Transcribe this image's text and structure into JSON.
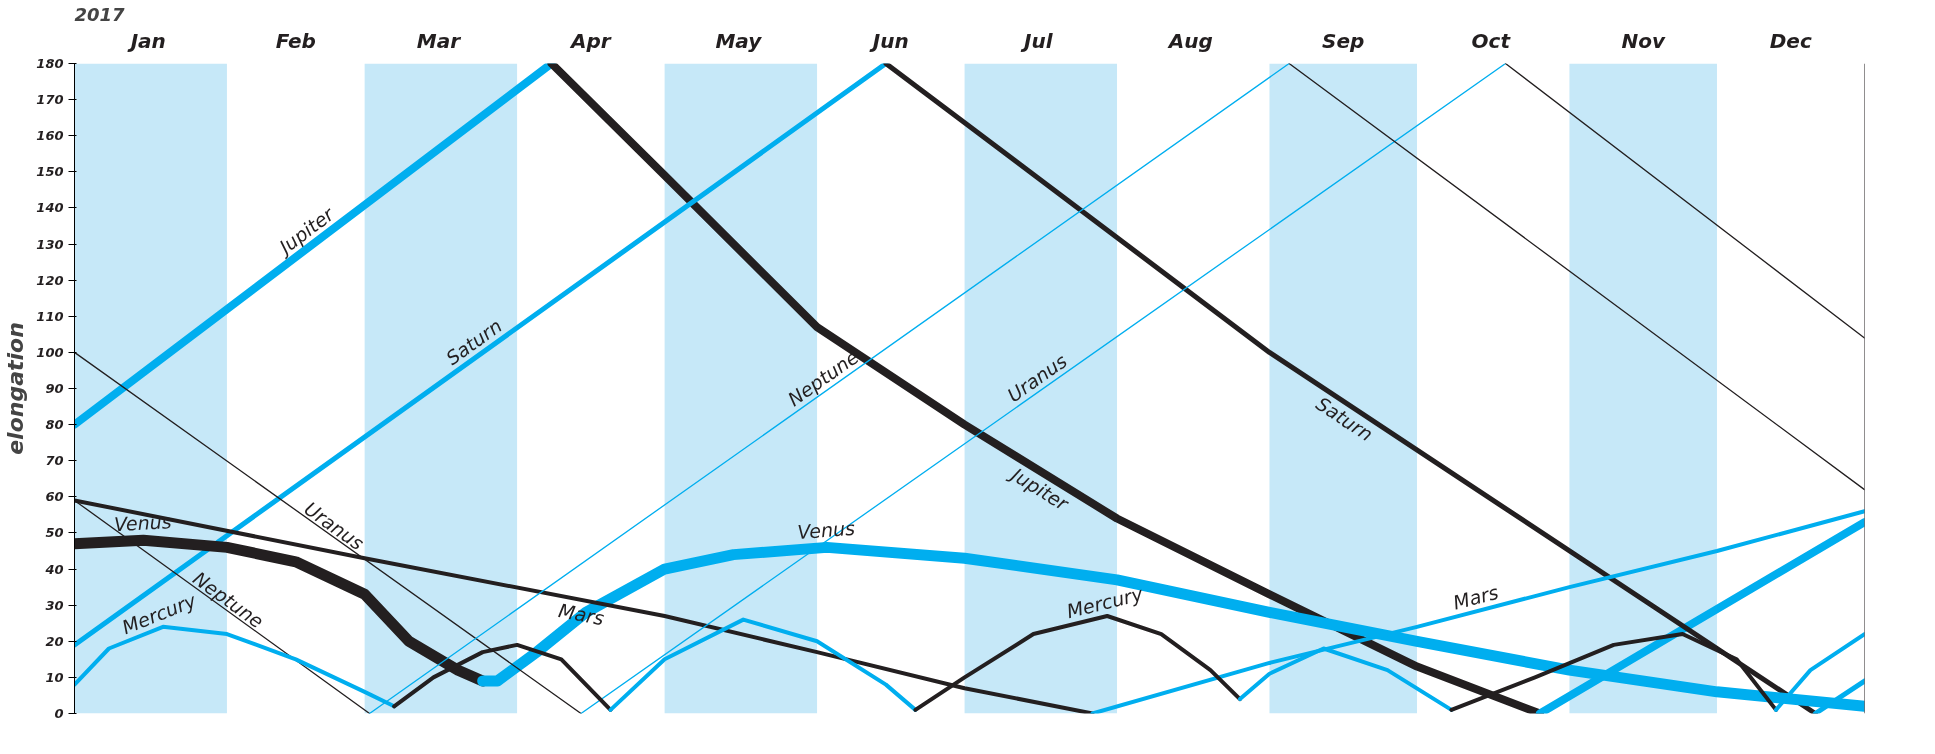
{
  "chart_data": {
    "type": "line",
    "title": "2017",
    "ylabel": "elongation",
    "xlim": [
      "2017-01-01",
      "2017-12-31"
    ],
    "xticks": [
      {
        "value": "2017-01-16",
        "label": "Jan"
      },
      {
        "value": "2017-02-15",
        "label": "Feb"
      },
      {
        "value": "2017-03-16",
        "label": "Mar"
      },
      {
        "value": "2017-04-16",
        "label": "Apr"
      },
      {
        "value": "2017-05-16",
        "label": "May"
      },
      {
        "value": "2017-06-16",
        "label": "Jun"
      },
      {
        "value": "2017-07-16",
        "label": "Jul"
      },
      {
        "value": "2017-08-16",
        "label": "Aug"
      },
      {
        "value": "2017-09-16",
        "label": "Sep"
      },
      {
        "value": "2017-10-16",
        "label": "Oct"
      },
      {
        "value": "2017-11-16",
        "label": "Nov"
      },
      {
        "value": "2017-12-16",
        "label": "Dec"
      }
    ],
    "ylim": [
      0,
      180
    ],
    "yticks": [
      0,
      10,
      20,
      30,
      40,
      50,
      60,
      70,
      80,
      90,
      100,
      110,
      120,
      130,
      140,
      150,
      160,
      170,
      180
    ],
    "grid": false,
    "line_style": "solid",
    "marker": "none",
    "bands": [
      {
        "axis": "x",
        "from": "2017-01-01",
        "to": "2017-02-01",
        "color": "#c6e8f8"
      },
      {
        "axis": "x",
        "from": "2017-03-01",
        "to": "2017-04-01",
        "color": "#c6e8f8"
      },
      {
        "axis": "x",
        "from": "2017-05-01",
        "to": "2017-06-01",
        "color": "#c6e8f8"
      },
      {
        "axis": "x",
        "from": "2017-07-01",
        "to": "2017-08-01",
        "color": "#c6e8f8"
      },
      {
        "axis": "x",
        "from": "2017-09-01",
        "to": "2017-10-01",
        "color": "#c6e8f8"
      },
      {
        "axis": "x",
        "from": "2017-11-01",
        "to": "2017-12-01",
        "color": "#c6e8f8"
      }
    ],
    "series": [
      {
        "name": "Jupiter",
        "color": "#00aeef",
        "x": [
          "2017-01-01",
          "2017-04-08"
        ],
        "values": [
          80,
          180
        ]
      },
      {
        "name": "Jupiter",
        "color": "#231f20",
        "x": [
          "2017-04-08",
          "2017-05-01",
          "2017-06-01",
          "2017-07-01",
          "2017-08-01",
          "2017-09-01",
          "2017-10-01",
          "2017-10-26"
        ],
        "values": [
          180,
          149,
          107,
          80,
          54,
          33,
          13,
          0
        ]
      },
      {
        "color": "#00aeef",
        "x": [
          "2017-10-26",
          "2017-12-31"
        ],
        "values": [
          0,
          53
        ]
      },
      {
        "name": "Saturn",
        "color": "#00aeef",
        "x": [
          "2017-01-01",
          "2017-06-15"
        ],
        "values": [
          19,
          180
        ]
      },
      {
        "name": "Saturn",
        "color": "#231f20",
        "x": [
          "2017-06-15",
          "2017-09-01",
          "2017-12-21"
        ],
        "values": [
          180,
          100,
          0
        ]
      },
      {
        "color": "#00aeef",
        "x": [
          "2017-12-21",
          "2017-12-31"
        ],
        "values": [
          0,
          9
        ]
      },
      {
        "name": "Venus",
        "color": "#231f20",
        "x": [
          "2017-01-01",
          "2017-01-15",
          "2017-02-01",
          "2017-02-15",
          "2017-03-01",
          "2017-03-10",
          "2017-03-20",
          "2017-03-25"
        ],
        "values": [
          47,
          48,
          46,
          42,
          33,
          20,
          12,
          9
        ]
      },
      {
        "name": "Venus",
        "color": "#00aeef",
        "x": [
          "2017-03-25",
          "2017-03-28",
          "2017-04-05",
          "2017-04-15",
          "2017-05-01",
          "2017-05-15",
          "2017-06-03",
          "2017-07-01",
          "2017-08-01",
          "2017-09-01",
          "2017-10-01",
          "2017-11-01",
          "2017-12-01",
          "2017-12-31"
        ],
        "values": [
          9,
          9,
          17,
          28,
          40,
          44,
          46,
          43,
          37,
          28,
          20,
          12,
          6,
          2
        ]
      },
      {
        "name": "Mars",
        "color": "#231f20",
        "x": [
          "2017-01-01",
          "2017-03-01",
          "2017-05-01",
          "2017-06-01",
          "2017-07-01",
          "2017-07-27"
        ],
        "values": [
          59,
          43,
          27,
          17,
          7,
          0
        ]
      },
      {
        "name": "Mars",
        "color": "#00aeef",
        "x": [
          "2017-07-27",
          "2017-09-01",
          "2017-10-01",
          "2017-11-01",
          "2017-12-01",
          "2017-12-31"
        ],
        "values": [
          0,
          14,
          24,
          35,
          45,
          56
        ]
      },
      {
        "name": "Uranus",
        "color": "#231f20",
        "x": [
          "2017-01-01",
          "2017-04-14"
        ],
        "values": [
          100,
          0
        ]
      },
      {
        "name": "Uranus",
        "color": "#00aeef",
        "x": [
          "2017-04-14",
          "2017-10-19"
        ],
        "values": [
          0,
          180
        ]
      },
      {
        "color": "#231f20",
        "x": [
          "2017-10-19",
          "2017-12-31"
        ],
        "values": [
          180,
          104
        ]
      },
      {
        "name": "Neptune",
        "color": "#231f20",
        "x": [
          "2017-01-01",
          "2017-03-02"
        ],
        "values": [
          59,
          0
        ]
      },
      {
        "name": "Neptune",
        "color": "#00aeef",
        "x": [
          "2017-03-02",
          "2017-09-05"
        ],
        "values": [
          0,
          180
        ]
      },
      {
        "color": "#231f20",
        "x": [
          "2017-09-05",
          "2017-12-31"
        ],
        "values": [
          180,
          62
        ]
      },
      {
        "name": "Mercury",
        "color": "#00aeef",
        "x": [
          "2017-01-01",
          "2017-01-08",
          "2017-01-19",
          "2017-02-01",
          "2017-02-15",
          "2017-03-01",
          "2017-03-07"
        ],
        "values": [
          8,
          18,
          24,
          22,
          15,
          6,
          2
        ]
      },
      {
        "color": "#231f20",
        "x": [
          "2017-03-07",
          "2017-03-15",
          "2017-03-25",
          "2017-04-01",
          "2017-04-10",
          "2017-04-20"
        ],
        "values": [
          2,
          10,
          17,
          19,
          15,
          1
        ]
      },
      {
        "color": "#00aeef",
        "x": [
          "2017-04-20",
          "2017-05-01",
          "2017-05-17",
          "2017-06-01",
          "2017-06-15",
          "2017-06-21"
        ],
        "values": [
          1,
          15,
          26,
          20,
          8,
          1
        ]
      },
      {
        "name": "Mercury",
        "color": "#231f20",
        "x": [
          "2017-06-21",
          "2017-07-01",
          "2017-07-15",
          "2017-07-30",
          "2017-08-10",
          "2017-08-20",
          "2017-08-26"
        ],
        "values": [
          1,
          10,
          22,
          27,
          22,
          12,
          4
        ]
      },
      {
        "color": "#00aeef",
        "x": [
          "2017-08-26",
          "2017-09-01",
          "2017-09-12",
          "2017-09-25",
          "2017-10-08"
        ],
        "values": [
          4,
          11,
          18,
          12,
          1
        ]
      },
      {
        "color": "#231f20",
        "x": [
          "2017-10-08",
          "2017-10-25",
          "2017-11-10",
          "2017-11-24",
          "2017-12-05",
          "2017-12-13"
        ],
        "values": [
          1,
          10,
          19,
          22,
          15,
          1
        ]
      },
      {
        "color": "#00aeef",
        "x": [
          "2017-12-13",
          "2017-12-20",
          "2017-12-31"
        ],
        "values": [
          1,
          12,
          22
        ]
      }
    ]
  }
}
